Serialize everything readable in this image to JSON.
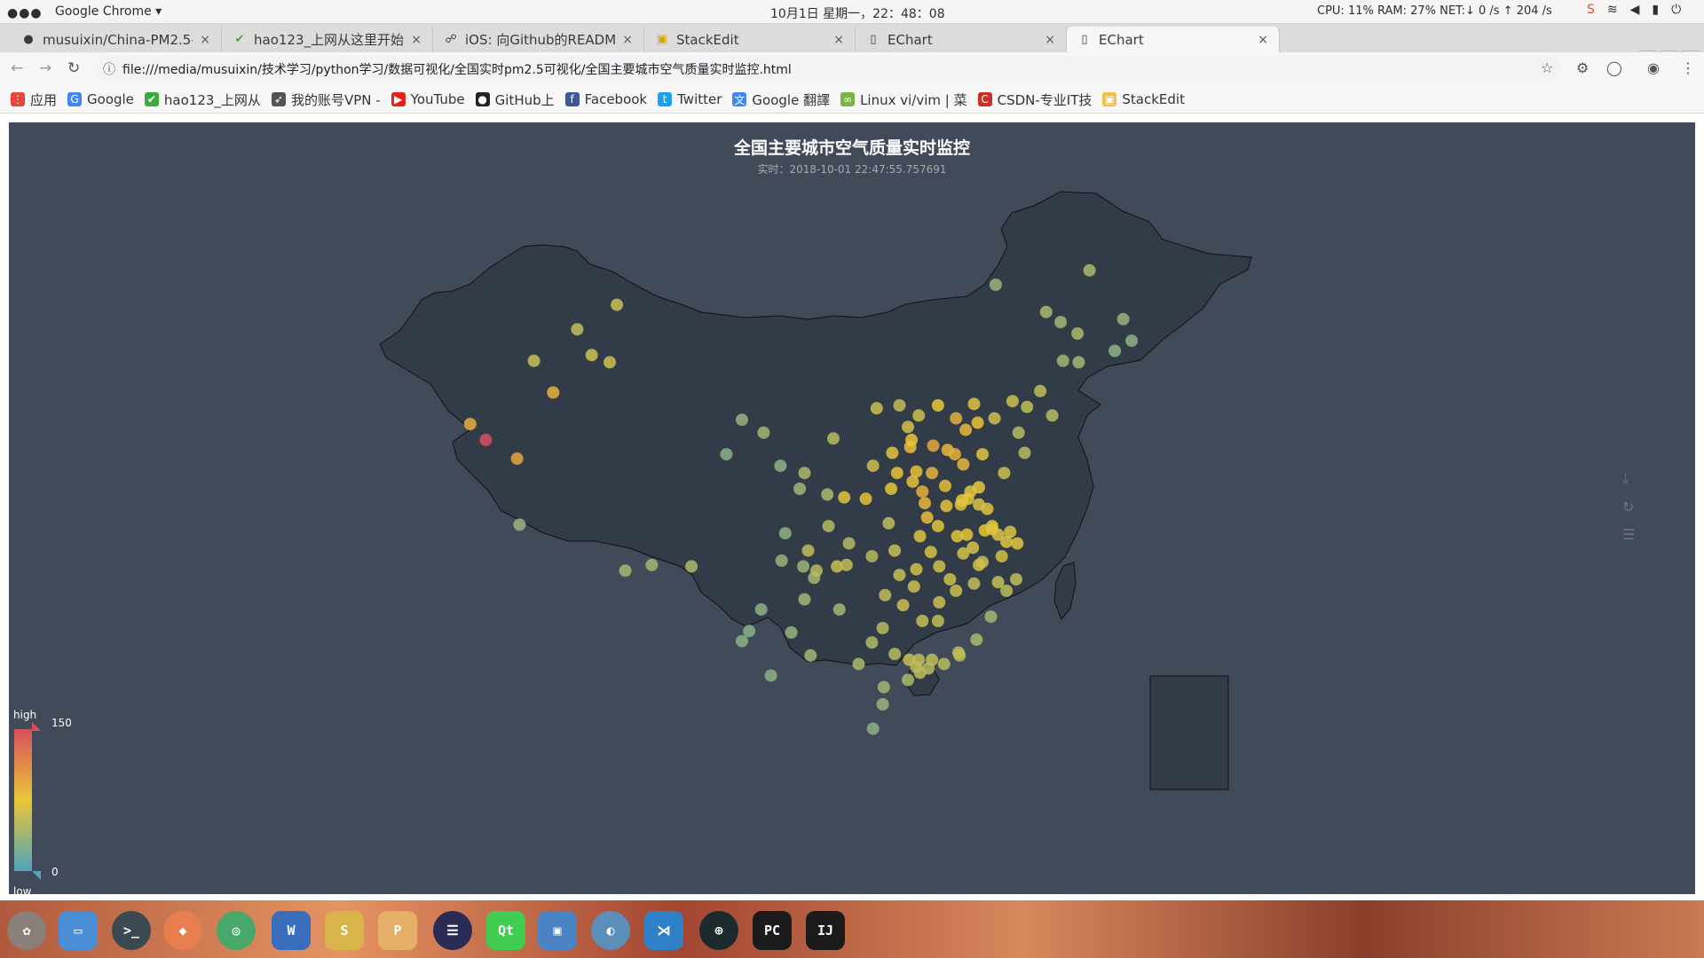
{
  "system_bar": {
    "dots": "●●●",
    "app_menu": "Google Chrome ▾",
    "clock": "10月1日 星期一，22：48：08",
    "stats": "CPU: 11%  RAM: 27%  NET:↓  0 /s ↑ 204 /s"
  },
  "tabs": [
    {
      "label": "musuixin/China-PM2.5-r",
      "icon": "github-icon"
    },
    {
      "label": "hao123_上网从这里开始",
      "icon": "hao123-icon"
    },
    {
      "label": "iOS: 向Github的READM",
      "icon": "page-icon"
    },
    {
      "label": "StackEdit",
      "icon": "stackedit-icon"
    },
    {
      "label": "EChart",
      "icon": "page-icon"
    },
    {
      "label": "EChart",
      "icon": "page-icon"
    }
  ],
  "tab_close": "×",
  "new_tab": "+",
  "address": {
    "url": "file:///media/musuixin/技术学习/python学习/数据可视化/全国实时pm2.5可视化/全国主要城市空气质量实时监控.html"
  },
  "bookmarks": [
    {
      "label": "应用",
      "color": "#e8453c"
    },
    {
      "label": "Google",
      "color": "#4285f4"
    },
    {
      "label": "hao123_上网从",
      "color": "#3cab3b"
    },
    {
      "label": "我的账号VPN -",
      "color": "#555555"
    },
    {
      "label": "YouTube",
      "color": "#e62117"
    },
    {
      "label": "GitHub上",
      "color": "#222222"
    },
    {
      "label": "Facebook",
      "color": "#3b5998"
    },
    {
      "label": "Twitter",
      "color": "#1da1f2"
    },
    {
      "label": "Google 翻譯",
      "color": "#4285f4"
    },
    {
      "label": "Linux vi/vim | 菜",
      "color": "#7cb342"
    },
    {
      "label": "CSDN-专业IT技",
      "color": "#c9302c"
    },
    {
      "label": "StackEdit",
      "color": "#f0c040"
    }
  ],
  "chart": {
    "title": "全国主要城市空气质量实时监控",
    "subtitle": "实时：2018-10-01 22:47:55.757691",
    "visual_map": {
      "high": "high",
      "low": "low",
      "max": "150",
      "min": "0",
      "colors": [
        "#50a3ba",
        "#eac736",
        "#d94e5d"
      ]
    },
    "background": "#404a59",
    "land_color": "#323c48",
    "border_color": "#111111"
  },
  "chart_data": {
    "type": "scatter",
    "title": "全国主要城市空气质量实时监控",
    "subtitle": "实时：2018-10-01 22:47:55.757691",
    "value_range": [
      0,
      150
    ],
    "points_lonlat_value": [
      [
        87.6,
        43.8,
        60
      ],
      [
        86.1,
        44.3,
        62
      ],
      [
        84.9,
        46.1,
        55
      ],
      [
        81.3,
        43.9,
        58
      ],
      [
        88.2,
        47.8,
        60
      ],
      [
        79.9,
        37.1,
        95
      ],
      [
        76.0,
        39.5,
        90
      ],
      [
        82.9,
        41.7,
        88
      ],
      [
        77.3,
        38.4,
        150
      ],
      [
        91.1,
        29.7,
        40
      ],
      [
        94.4,
        29.6,
        45
      ],
      [
        88.9,
        29.3,
        42
      ],
      [
        80.1,
        32.5,
        35
      ],
      [
        101.8,
        36.6,
        30
      ],
      [
        97.3,
        37.4,
        28
      ],
      [
        98.6,
        39.8,
        34
      ],
      [
        103.8,
        36.1,
        45
      ],
      [
        100.4,
        38.9,
        40
      ],
      [
        106.2,
        38.5,
        50
      ],
      [
        111.7,
        40.8,
        55
      ],
      [
        109.8,
        40.6,
        60
      ],
      [
        119.7,
        49.2,
        35
      ],
      [
        126.5,
        45.8,
        45
      ],
      [
        125.3,
        43.9,
        40
      ],
      [
        123.4,
        41.8,
        55
      ],
      [
        121.6,
        38.9,
        50
      ],
      [
        116.4,
        39.9,
        90
      ],
      [
        117.2,
        39.1,
        85
      ],
      [
        114.5,
        38.0,
        95
      ],
      [
        112.6,
        37.9,
        80
      ],
      [
        113.6,
        34.8,
        90
      ],
      [
        117.0,
        36.7,
        85
      ],
      [
        120.4,
        36.1,
        60
      ],
      [
        118.8,
        32.1,
        75
      ],
      [
        121.5,
        31.2,
        70
      ],
      [
        120.2,
        30.3,
        65
      ],
      [
        117.3,
        31.8,
        72
      ],
      [
        114.3,
        30.6,
        65
      ],
      [
        112.9,
        28.2,
        60
      ],
      [
        115.9,
        28.7,
        62
      ],
      [
        119.3,
        26.1,
        40
      ],
      [
        113.3,
        23.1,
        55
      ],
      [
        114.1,
        22.5,
        50
      ],
      [
        108.3,
        22.8,
        45
      ],
      [
        110.3,
        20.0,
        35
      ],
      [
        109.5,
        18.3,
        30
      ],
      [
        106.7,
        26.6,
        40
      ],
      [
        102.7,
        25.0,
        35
      ],
      [
        104.1,
        30.7,
        55
      ],
      [
        106.5,
        29.6,
        60
      ],
      [
        108.9,
        34.3,
        80
      ],
      [
        100.2,
        26.6,
        30
      ],
      [
        103.7,
        29.6,
        38
      ],
      [
        104.6,
        28.8,
        42
      ],
      [
        105.8,
        32.4,
        50
      ],
      [
        107.5,
        31.2,
        48
      ],
      [
        111.3,
        30.7,
        58
      ],
      [
        113.1,
        29.4,
        62
      ],
      [
        115.0,
        27.1,
        60
      ],
      [
        116.6,
        23.6,
        58
      ],
      [
        118.1,
        24.5,
        45
      ],
      [
        121.1,
        41.1,
        60
      ],
      [
        122.1,
        37.5,
        50
      ],
      [
        119.0,
        33.6,
        70
      ],
      [
        120.9,
        32.0,
        68
      ],
      [
        116.9,
        34.2,
        75
      ],
      [
        115.7,
        37.7,
        85
      ],
      [
        118.6,
        37.4,
        70
      ],
      [
        122.3,
        40.7,
        55
      ],
      [
        124.4,
        40.1,
        50
      ],
      [
        126.6,
        43.8,
        40
      ],
      [
        129.6,
        44.6,
        30
      ],
      [
        130.3,
        46.8,
        35
      ],
      [
        127.5,
        50.2,
        45
      ],
      [
        123.9,
        47.3,
        45
      ],
      [
        131.0,
        45.3,
        30
      ],
      [
        125.1,
        46.6,
        40
      ],
      [
        103.4,
        35.0,
        40
      ],
      [
        105.7,
        34.6,
        45
      ],
      [
        107.1,
        34.4,
        70
      ],
      [
        109.5,
        36.6,
        60
      ],
      [
        111.5,
        36.1,
        78
      ],
      [
        112.8,
        35.5,
        80
      ],
      [
        114.4,
        36.1,
        88
      ],
      [
        115.5,
        35.2,
        82
      ],
      [
        117.6,
        34.8,
        70
      ],
      [
        118.3,
        35.1,
        74
      ],
      [
        114.9,
        32.4,
        72
      ],
      [
        113.4,
        31.7,
        68
      ],
      [
        110.8,
        32.6,
        55
      ],
      [
        109.4,
        30.3,
        50
      ],
      [
        111.7,
        29.0,
        58
      ],
      [
        110.5,
        27.6,
        55
      ],
      [
        112.0,
        26.9,
        60
      ],
      [
        113.6,
        25.8,
        58
      ],
      [
        114.9,
        25.8,
        55
      ],
      [
        116.4,
        27.9,
        60
      ],
      [
        117.9,
        28.4,
        55
      ],
      [
        119.9,
        28.5,
        58
      ],
      [
        121.4,
        28.7,
        55
      ],
      [
        120.6,
        27.9,
        52
      ],
      [
        118.6,
        29.9,
        60
      ],
      [
        117.0,
        30.5,
        65
      ],
      [
        115.0,
        29.6,
        62
      ],
      [
        109.4,
        24.3,
        48
      ],
      [
        110.3,
        25.3,
        50
      ],
      [
        111.3,
        23.5,
        50
      ],
      [
        112.4,
        21.7,
        45
      ],
      [
        110.4,
        21.2,
        40
      ],
      [
        116.7,
        23.4,
        55
      ],
      [
        115.4,
        22.8,
        50
      ],
      [
        113.1,
        22.6,
        55
      ],
      [
        113.4,
        22.2,
        52
      ],
      [
        112.5,
        23.1,
        58
      ],
      [
        114.4,
        23.1,
        55
      ],
      [
        113.8,
        34.0,
        85
      ],
      [
        114.0,
        33.0,
        80
      ],
      [
        115.6,
        33.8,
        78
      ],
      [
        116.3,
        37.4,
        88
      ],
      [
        114.9,
        40.8,
        75
      ],
      [
        117.9,
        40.9,
        70
      ],
      [
        118.2,
        39.6,
        78
      ],
      [
        119.6,
        39.9,
        60
      ],
      [
        112.4,
        39.3,
        65
      ],
      [
        113.3,
        40.1,
        62
      ],
      [
        111.1,
        37.5,
        70
      ],
      [
        112.7,
        38.4,
        75
      ],
      [
        113.1,
        36.2,
        80
      ],
      [
        111.0,
        35.0,
        72
      ],
      [
        117.4,
        34.3,
        72
      ],
      [
        116.8,
        33.9,
        70
      ],
      [
        118.3,
        33.9,
        66
      ],
      [
        119.4,
        32.4,
        70
      ],
      [
        120.6,
        31.3,
        68
      ],
      [
        119.9,
        31.8,
        66
      ],
      [
        119.4,
        32.2,
        70
      ],
      [
        116.5,
        31.7,
        70
      ],
      [
        117.8,
        30.9,
        66
      ],
      [
        118.3,
        29.7,
        62
      ],
      [
        101.0,
        22.0,
        30
      ],
      [
        99.2,
        25.1,
        28
      ],
      [
        98.6,
        24.4,
        30
      ],
      [
        103.8,
        27.3,
        40
      ],
      [
        104.3,
        23.4,
        40
      ],
      [
        107.3,
        29.7,
        55
      ],
      [
        102.2,
        31.9,
        30
      ],
      [
        101.9,
        30.0,
        35
      ],
      [
        104.8,
        29.3,
        50
      ]
    ]
  }
}
